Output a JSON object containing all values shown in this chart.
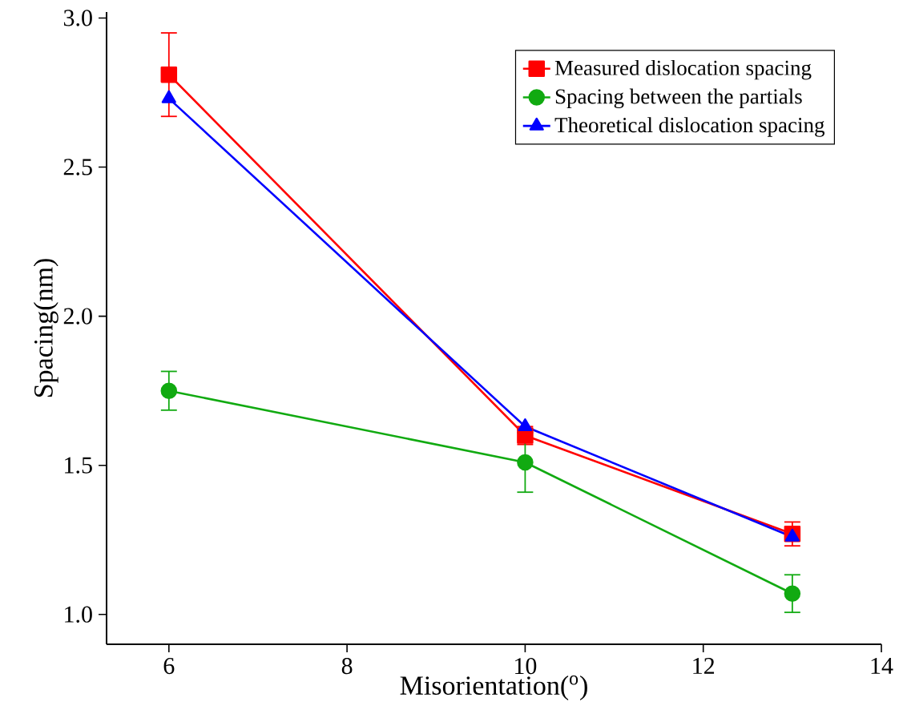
{
  "chart_data": {
    "type": "line",
    "xlabel": "Misorientation($^{o}$)",
    "ylabel": "Spacing(nm)",
    "x": [
      6,
      10,
      13
    ],
    "series": [
      {
        "name": "Measured dislocation spacing",
        "color": "#ff0000",
        "marker": "square",
        "values": [
          2.81,
          1.6,
          1.27
        ],
        "errors": [
          0.14,
          0.03,
          0.04
        ]
      },
      {
        "name": "Spacing between the partials",
        "color": "#11aa11",
        "marker": "circle",
        "values": [
          1.75,
          1.51,
          1.07
        ],
        "errors": [
          0.065,
          0.1,
          0.063
        ]
      },
      {
        "name": "Theoretical dislocation spacing",
        "color": "#0000ff",
        "marker": "triangle",
        "values": [
          2.73,
          1.63,
          1.26
        ]
      }
    ],
    "xlim": [
      5.3,
      14
    ],
    "ylim": [
      0.9,
      3.02
    ],
    "xticks": [
      6,
      8,
      10,
      12,
      14
    ],
    "yticks": [
      {
        "value": 1.0,
        "label": "1.0"
      },
      {
        "value": 1.5,
        "label": "1.5"
      },
      {
        "value": 2.0,
        "label": "2.0"
      },
      {
        "value": 2.5,
        "label": "2.5"
      },
      {
        "value": 3.0,
        "label": "3.0"
      }
    ],
    "legend": "top right",
    "grid": false,
    "line_style": "solid"
  }
}
